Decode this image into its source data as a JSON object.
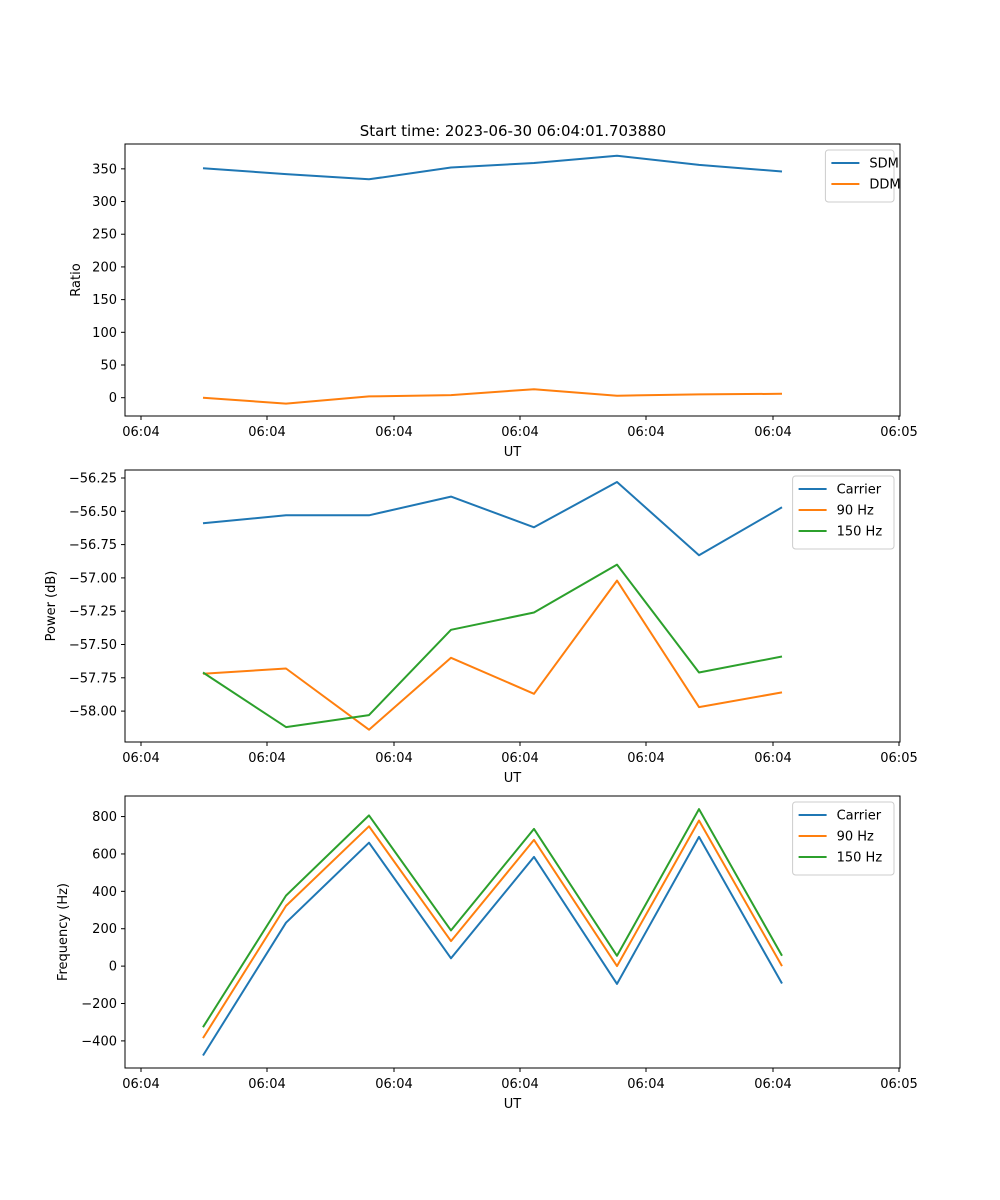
{
  "figure": {
    "title": "Start time: 2023-06-30 06:04:01.703880"
  },
  "colors": {
    "blue": "#1f77b4",
    "orange": "#ff7f0e",
    "green": "#2ca02c"
  },
  "chart_data": [
    {
      "type": "line",
      "title": "Start time: 2023-06-30 06:04:01.703880",
      "xlabel": "UT",
      "ylabel": "Ratio",
      "xticks": [
        "06:04",
        "06:04",
        "06:04",
        "06:04",
        "06:04",
        "06:04",
        "06:05"
      ],
      "yticks": [
        0,
        50,
        100,
        150,
        200,
        250,
        300,
        350
      ],
      "ylim": [
        -28,
        388
      ],
      "legend": "top-right",
      "series": [
        {
          "name": "SDM",
          "color": "#1f77b4",
          "values": [
            351,
            342,
            334,
            352,
            359,
            370,
            356,
            346
          ]
        },
        {
          "name": "DDM",
          "color": "#ff7f0e",
          "values": [
            0,
            -9,
            2,
            4,
            13,
            3,
            5,
            6
          ]
        }
      ]
    },
    {
      "type": "line",
      "title": "",
      "xlabel": "UT",
      "ylabel": "Power (dB)",
      "xticks": [
        "06:04",
        "06:04",
        "06:04",
        "06:04",
        "06:04",
        "06:04",
        "06:05"
      ],
      "yticks": [
        -58.0,
        -57.75,
        -57.5,
        -57.25,
        -57.0,
        -56.75,
        -56.5,
        -56.25
      ],
      "ytick_labels": [
        "−58.00",
        "−57.75",
        "−57.50",
        "−57.25",
        "−57.00",
        "−56.75",
        "−56.50",
        "−56.25"
      ],
      "ylim": [
        -58.232,
        -56.19
      ],
      "legend": "top-right",
      "series": [
        {
          "name": "Carrier",
          "color": "#1f77b4",
          "values": [
            -56.59,
            -56.53,
            -56.53,
            -56.39,
            -56.62,
            -56.28,
            -56.83,
            -56.47
          ]
        },
        {
          "name": "90 Hz",
          "color": "#ff7f0e",
          "values": [
            -57.72,
            -57.68,
            -58.14,
            -57.6,
            -57.87,
            -57.02,
            -57.97,
            -57.86
          ]
        },
        {
          "name": "150 Hz",
          "color": "#2ca02c",
          "values": [
            -57.71,
            -58.12,
            -58.03,
            -57.39,
            -57.26,
            -56.9,
            -57.71,
            -57.59
          ]
        }
      ]
    },
    {
      "type": "line",
      "title": "",
      "xlabel": "UT",
      "ylabel": "Frequency (Hz)",
      "xticks": [
        "06:04",
        "06:04",
        "06:04",
        "06:04",
        "06:04",
        "06:04",
        "06:05"
      ],
      "yticks": [
        -400,
        -200,
        0,
        200,
        400,
        600,
        800
      ],
      "ytick_labels": [
        "−400",
        "−200",
        "0",
        "200",
        "400",
        "600",
        "800"
      ],
      "ylim": [
        -545,
        910
      ],
      "legend": "top-right",
      "series": [
        {
          "name": "Carrier",
          "color": "#1f77b4",
          "values": [
            -478,
            232,
            660,
            42,
            584,
            -95,
            691,
            -93
          ]
        },
        {
          "name": "90 Hz",
          "color": "#ff7f0e",
          "values": [
            -385,
            322,
            748,
            134,
            675,
            0,
            779,
            0
          ]
        },
        {
          "name": "150 Hz",
          "color": "#2ca02c",
          "values": [
            -327,
            377,
            806,
            191,
            734,
            55,
            840,
            55
          ]
        }
      ]
    }
  ]
}
